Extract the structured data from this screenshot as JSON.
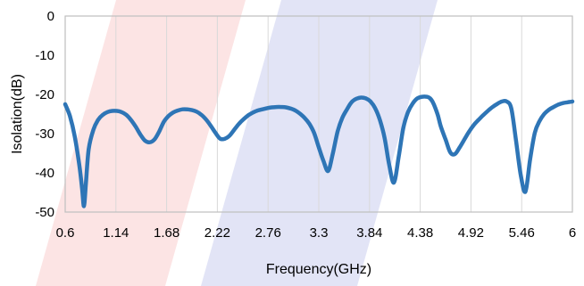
{
  "chart_data": {
    "type": "line",
    "xlabel": "Frequency(GHz)",
    "ylabel": "Isolation(dB)",
    "xlim": [
      0.6,
      6
    ],
    "ylim": [
      -50,
      0
    ],
    "x_ticks": [
      "0.6",
      "1.14",
      "1.68",
      "2.22",
      "2.76",
      "3.3",
      "3.84",
      "4.38",
      "4.92",
      "5.46",
      "6"
    ],
    "y_ticks": [
      "0",
      "-10",
      "-20",
      "-30",
      "-40",
      "-50"
    ],
    "grid": "vertical",
    "series": [
      {
        "color": "#2e75b6",
        "x": [
          0.6,
          0.65,
          0.7,
          0.75,
          0.78,
          0.8,
          0.82,
          0.85,
          0.9,
          0.95,
          1.0,
          1.05,
          1.1,
          1.15,
          1.2,
          1.25,
          1.3,
          1.35,
          1.4,
          1.45,
          1.5,
          1.55,
          1.6,
          1.65,
          1.7,
          1.75,
          1.8,
          1.85,
          1.9,
          1.95,
          2.0,
          2.05,
          2.1,
          2.15,
          2.2,
          2.25,
          2.3,
          2.35,
          2.4,
          2.45,
          2.5,
          2.55,
          2.6,
          2.65,
          2.7,
          2.75,
          2.8,
          2.85,
          2.9,
          2.95,
          3.0,
          3.05,
          3.1,
          3.15,
          3.2,
          3.25,
          3.3,
          3.35,
          3.4,
          3.45,
          3.5,
          3.55,
          3.6,
          3.63,
          3.66,
          3.7,
          3.75,
          3.8,
          3.85,
          3.9,
          3.95,
          4.0,
          4.05,
          4.1,
          4.15,
          4.2,
          4.25,
          4.3,
          4.35,
          4.4,
          4.45,
          4.48,
          4.51,
          4.54,
          4.57,
          4.6,
          4.65,
          4.7,
          4.75,
          4.8,
          4.85,
          4.9,
          4.95,
          5.0,
          5.05,
          5.1,
          5.15,
          5.2,
          5.25,
          5.3,
          5.35,
          5.4,
          5.45,
          5.5,
          5.55,
          5.6,
          5.65,
          5.7,
          5.75,
          5.8,
          5.85,
          5.9,
          5.95,
          6.0
        ],
        "y": [
          -22.5,
          -25.5,
          -30.5,
          -38,
          -44,
          -48.5,
          -43,
          -34,
          -29,
          -26.5,
          -25.2,
          -24.5,
          -24.2,
          -24.2,
          -24.5,
          -25.2,
          -26.5,
          -28.2,
          -30.2,
          -31.8,
          -32.2,
          -31.5,
          -29.5,
          -27,
          -25.5,
          -24.6,
          -24.1,
          -23.8,
          -23.8,
          -24,
          -24.4,
          -25.2,
          -26.4,
          -28,
          -29.8,
          -31.3,
          -31.3,
          -30.5,
          -29,
          -27.5,
          -26.3,
          -25.3,
          -24.6,
          -24.1,
          -23.8,
          -23.5,
          -23.3,
          -23.2,
          -23.2,
          -23.3,
          -23.6,
          -24.1,
          -24.9,
          -26,
          -27.5,
          -29.8,
          -33.5,
          -37,
          -39.5,
          -35,
          -29.5,
          -26,
          -23.8,
          -22.6,
          -21.7,
          -21.1,
          -20.8,
          -21,
          -21.8,
          -23.5,
          -26.5,
          -31,
          -38,
          -42.5,
          -36,
          -28.5,
          -24.5,
          -22.3,
          -21,
          -20.6,
          -20.6,
          -20.9,
          -21.8,
          -23.4,
          -25.5,
          -28.2,
          -31.5,
          -34.8,
          -35.2,
          -33.5,
          -31.5,
          -29.5,
          -27.8,
          -26.5,
          -25.3,
          -24.2,
          -23.2,
          -22.4,
          -21.8,
          -21.8,
          -23.6,
          -31.8,
          -40.5,
          -44.8,
          -36.5,
          -29.8,
          -26.8,
          -25,
          -23.9,
          -23.2,
          -22.6,
          -22.2,
          -22,
          -21.8
        ]
      }
    ]
  }
}
